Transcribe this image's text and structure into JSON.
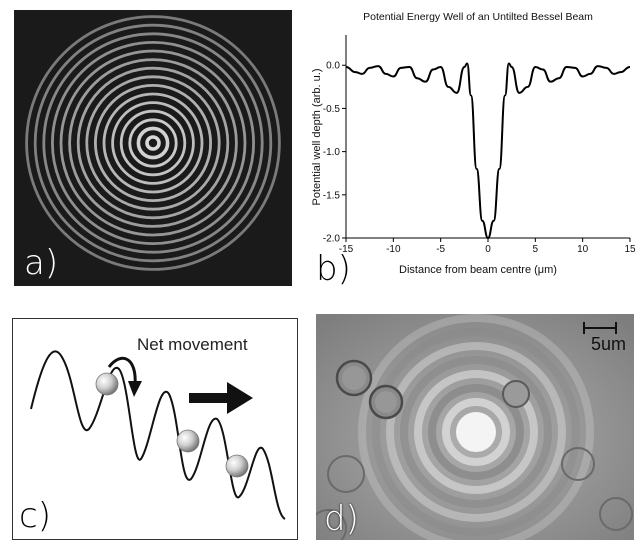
{
  "panels": {
    "a": {
      "letter": "a)"
    },
    "b": {
      "letter": "b)"
    },
    "c": {
      "letter": "c)",
      "annotation": "Net movement"
    },
    "d": {
      "letter": "d)",
      "scale_bar": "5um"
    }
  },
  "colors": {
    "panel_a_background": "#1a1a1a",
    "ring": "#d8d8d8",
    "curve": "#000000",
    "micrograph": "#9a9a9a"
  },
  "icons": [
    "bead-icon",
    "curved-arrow-icon",
    "right-arrow-icon",
    "scale-bar-icon"
  ],
  "chart_data": {
    "type": "line",
    "title": "Potential Energy Well of an Untilted Bessel Beam",
    "xlabel": "Distance from beam centre (μm)",
    "ylabel": "Potential well depth (arb. u.)",
    "xlim": [
      -15,
      15
    ],
    "ylim": [
      -2.0,
      0.35
    ],
    "xticks": [
      -15,
      -10,
      -5,
      0,
      5,
      10,
      15
    ],
    "yticks": [
      0.0,
      -0.5,
      -1.0,
      -1.5,
      -2.0
    ],
    "ytick_labels": [
      "0.0",
      "-0.5",
      "-1.0",
      "-1.5",
      "-2.0"
    ],
    "grid": false,
    "series": [
      {
        "x": [
          -15,
          -14,
          -13.3,
          -12.5,
          -11.6,
          -10.8,
          -10,
          -9.2,
          -8.3,
          -7.5,
          -6.6,
          -5.8,
          -5,
          -4.2,
          -3.3,
          -2.5,
          -2.2,
          -1.8,
          -1.2,
          -0.6,
          0,
          0.6,
          1.2,
          1.8,
          2.2,
          2.5,
          3.3,
          4.2,
          5,
          5.8,
          6.6,
          7.5,
          8.3,
          9.2,
          10,
          10.8,
          11.6,
          12.5,
          13.3,
          14,
          15
        ],
        "y": [
          -0.02,
          -0.08,
          -0.1,
          -0.03,
          -0.01,
          -0.1,
          -0.13,
          -0.03,
          -0.02,
          -0.15,
          -0.19,
          -0.05,
          -0.02,
          -0.25,
          -0.32,
          -0.02,
          0.02,
          -0.35,
          -1.2,
          -1.8,
          -2.0,
          -1.8,
          -1.2,
          -0.35,
          0.02,
          -0.02,
          -0.32,
          -0.25,
          -0.02,
          -0.05,
          -0.19,
          -0.15,
          -0.02,
          -0.03,
          -0.13,
          -0.1,
          -0.01,
          -0.03,
          -0.1,
          -0.08,
          -0.02
        ]
      }
    ]
  }
}
